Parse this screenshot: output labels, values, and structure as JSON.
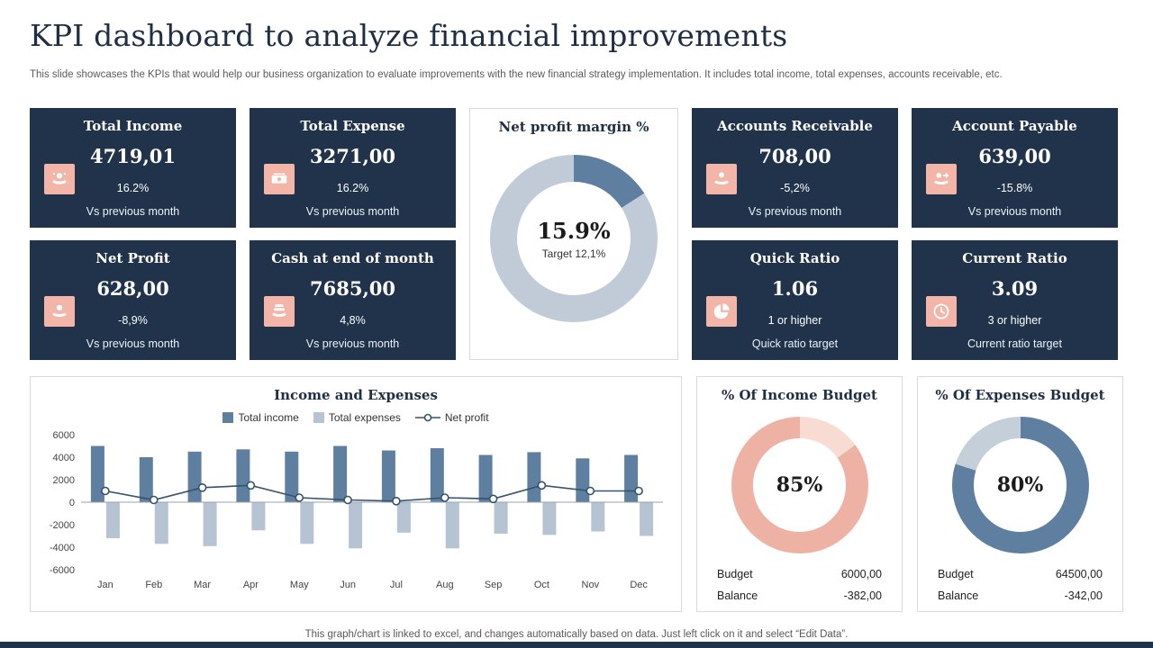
{
  "slide": {
    "title": "KPI dashboard to analyze financial improvements",
    "subtitle": "This slide showcases the KPIs that would help our business organization to evaluate improvements with the new financial strategy implementation. It includes total income, total expenses, accounts receivable, etc.",
    "footer_note": "This graph/chart is linked to excel, and changes automatically based on data. Just left click on it and select “Edit Data”."
  },
  "colors": {
    "card_navy": "#20334a",
    "accent_pink": "#f2b5a7",
    "steel_blue": "#5e7fa0",
    "light_blue": "#b6c3d2",
    "net_profit_line": "#35526e"
  },
  "kpi_cards": [
    {
      "title": "Total Income",
      "value": "4719,01",
      "delta": "16.2%",
      "caption": "Vs previous month",
      "icon": "income-hand-icon"
    },
    {
      "title": "Total Expense",
      "value": "3271,00",
      "delta": "16.2%",
      "caption": "Vs previous month",
      "icon": "expense-bill-icon"
    },
    {
      "title": "Accounts Receivable",
      "value": "708,00",
      "delta": "-5,2%",
      "caption": "Vs previous month",
      "icon": "receivable-hand-icon"
    },
    {
      "title": "Account Payable",
      "value": "639,00",
      "delta": "-15.8%",
      "caption": "Vs previous month",
      "icon": "payable-hand-icon"
    },
    {
      "title": "Net Profit",
      "value": "628,00",
      "delta": "-8,9%",
      "caption": "Vs previous month",
      "icon": "profit-hand-icon"
    },
    {
      "title": "Cash at end of month",
      "value": "7685,00",
      "delta": "4,8%",
      "caption": "Vs previous month",
      "icon": "cash-hand-icon"
    },
    {
      "title": "Quick Ratio",
      "value": "1.06",
      "delta": "1 or higher",
      "caption": "Quick ratio target",
      "icon": "pie-chart-icon"
    },
    {
      "title": "Current Ratio",
      "value": "3.09",
      "delta": "3 or higher",
      "caption": "Current ratio target",
      "icon": "clock-icon"
    }
  ],
  "chart_data": [
    {
      "type": "pie",
      "subtype": "donut",
      "title": "Net profit margin %",
      "center_value": "15.9%",
      "center_caption": "Target 12,1%",
      "slices": [
        {
          "label": "Net profit margin",
          "value": 15.9,
          "color": "#5e7fa0"
        },
        {
          "label": "Remainder",
          "value": 84.1,
          "color": "#c0cbd7"
        }
      ]
    },
    {
      "type": "bar",
      "subtype": "bars-with-line",
      "title": "Income and Expenses",
      "categories": [
        "Jan",
        "Feb",
        "Mar",
        "Apr",
        "May",
        "Jun",
        "Jul",
        "Aug",
        "Sep",
        "Oct",
        "Nov",
        "Dec"
      ],
      "series": [
        {
          "name": "Total income",
          "type": "bar",
          "color": "#5e7fa0",
          "values": [
            5000,
            4000,
            4500,
            4700,
            4500,
            5000,
            4600,
            4800,
            4200,
            4450,
            3900,
            4200
          ]
        },
        {
          "name": "Total expenses",
          "type": "bar",
          "color": "#b6c3d2",
          "values": [
            -3200,
            -3700,
            -3900,
            -2500,
            -3700,
            -4100,
            -2700,
            -4100,
            -2800,
            -2900,
            -2600,
            -3000
          ]
        },
        {
          "name": "Net profit",
          "type": "line",
          "color": "#35526e",
          "values": [
            1000,
            200,
            1300,
            1500,
            400,
            200,
            100,
            400,
            300,
            1500,
            1000,
            1000
          ]
        }
      ],
      "ylim": [
        -6000,
        6000
      ],
      "yticks": [
        6000,
        4000,
        2000,
        0,
        -2000,
        -4000,
        -6000
      ],
      "grid": false,
      "legend_position": "top"
    },
    {
      "type": "pie",
      "subtype": "donut",
      "title": "% Of Income Budget",
      "center_value": "85%",
      "slices": [
        {
          "label": "Remaining",
          "value": 15,
          "color": "#f8dcd4"
        },
        {
          "label": "Used",
          "value": 85,
          "color": "#eeb2a4"
        }
      ],
      "stats": [
        {
          "label": "Budget",
          "value": "6000,00"
        },
        {
          "label": "Balance",
          "value": "-382,00"
        }
      ]
    },
    {
      "type": "pie",
      "subtype": "donut",
      "title": "% Of Expenses Budget",
      "center_value": "80%",
      "slices": [
        {
          "label": "Used",
          "value": 80,
          "color": "#5e7fa0"
        },
        {
          "label": "Remaining",
          "value": 20,
          "color": "#c4cfda"
        }
      ],
      "stats": [
        {
          "label": "Budget",
          "value": "64500,00"
        },
        {
          "label": "Balance",
          "value": "-342,00"
        }
      ]
    }
  ]
}
